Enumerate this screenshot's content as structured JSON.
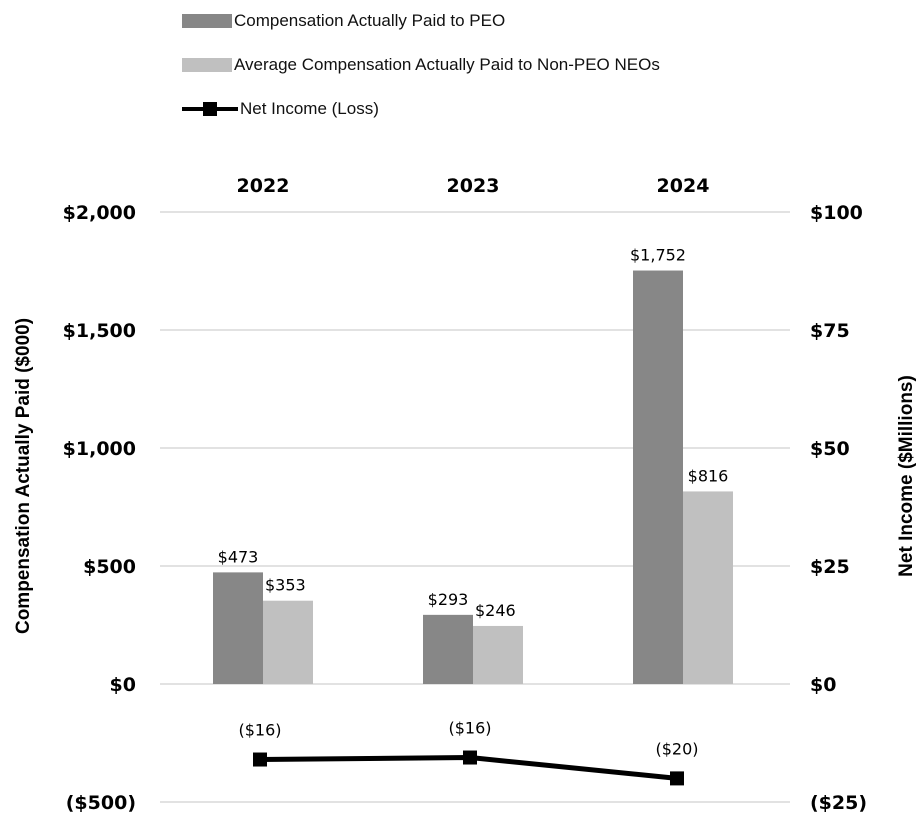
{
  "legend": {
    "peo": "Compensation Actually Paid to PEO",
    "non_peo": "Average Compensation Actually Paid to Non-PEO NEOs",
    "net_income": "Net Income (Loss)"
  },
  "colors": {
    "peo": "#878787",
    "non_peo": "#c0c0c0",
    "net_income": "#000000",
    "grid": "#d9d9d9"
  },
  "chart_data": {
    "type": "bar",
    "categories": [
      "2022",
      "2023",
      "2024"
    ],
    "series": [
      {
        "name": "Compensation Actually Paid to PEO",
        "axis": "left",
        "values": [
          473,
          293,
          1752
        ],
        "labels": [
          "$473",
          "$293",
          "$1,752"
        ]
      },
      {
        "name": "Average Compensation Actually Paid to Non-PEO NEOs",
        "axis": "left",
        "values": [
          353,
          246,
          816
        ],
        "labels": [
          "$353",
          "$246",
          "$816"
        ]
      },
      {
        "name": "Net Income (Loss)",
        "type": "line",
        "axis": "right",
        "values": [
          -16,
          -16,
          -20
        ],
        "labels": [
          "($16)",
          "($16)",
          "($20)"
        ]
      }
    ],
    "ylabel": "Compensation Actually Paid ($000)",
    "y2label": "Net Income ($Millions)",
    "ylim": [
      -500,
      2000
    ],
    "y2lim": [
      -25,
      100
    ],
    "yticks": [
      {
        "value": 2000,
        "label": "$2,000"
      },
      {
        "value": 1500,
        "label": "$1,500"
      },
      {
        "value": 1000,
        "label": "$1,000"
      },
      {
        "value": 500,
        "label": "$500"
      },
      {
        "value": 0,
        "label": "$0"
      },
      {
        "value": -500,
        "label": "($500)"
      }
    ],
    "y2ticks": [
      {
        "value": 100,
        "label": "$100"
      },
      {
        "value": 75,
        "label": "$75"
      },
      {
        "value": 50,
        "label": "$50"
      },
      {
        "value": 25,
        "label": "$25"
      },
      {
        "value": 0,
        "label": "$0"
      },
      {
        "value": -25,
        "label": "($25)"
      }
    ],
    "x_axis_position": "top",
    "grid": true,
    "legend_position": "top"
  }
}
